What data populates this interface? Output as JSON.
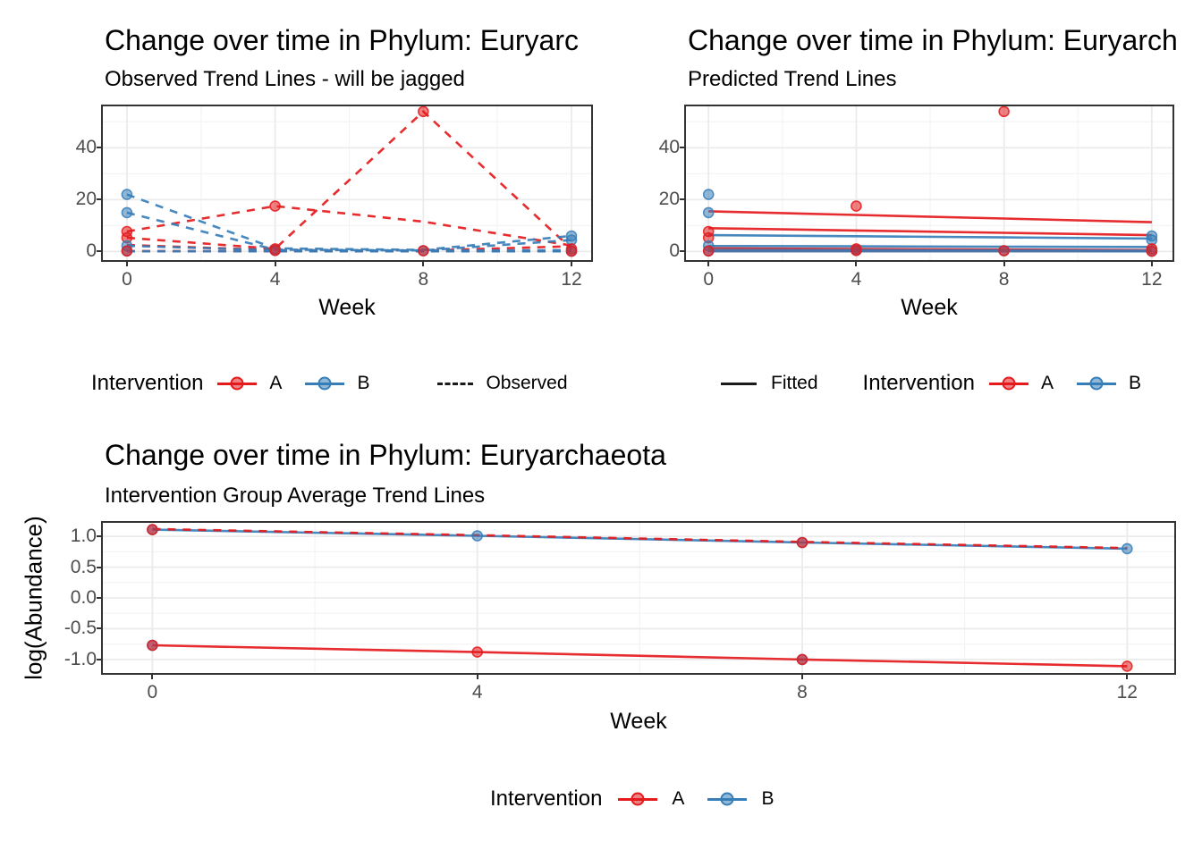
{
  "palette": {
    "red": "#E41A1C",
    "blue": "#377EB8",
    "tick_text": "#4D4D4D",
    "grid_major": "#EBEBEB",
    "grid_minor": "#F4F4F4",
    "panel_border": "#333333"
  },
  "legends": {
    "row1_left": {
      "title": "Intervention",
      "items": [
        {
          "label": "A",
          "color": "red"
        },
        {
          "label": "B",
          "color": "blue"
        }
      ],
      "linetype_label": "Observed",
      "linetype_style": "dashed"
    },
    "row1_right": {
      "linetype_label": "Fitted",
      "linetype_style": "solid",
      "title": "Intervention",
      "items": [
        {
          "label": "A",
          "color": "red"
        },
        {
          "label": "B",
          "color": "blue"
        }
      ]
    },
    "row2": {
      "title": "Intervention",
      "items": [
        {
          "label": "A",
          "color": "red"
        },
        {
          "label": "B",
          "color": "blue"
        }
      ]
    }
  },
  "chart_data": [
    {
      "type": "line",
      "title": "Change over time in Phylum: Euryarc",
      "subtitle": "Observed Trend Lines - will be jagged",
      "xlabel": "Week",
      "ylabel": "",
      "line_style": "dashed (Observed)",
      "xlim": [
        -0.65,
        12.53
      ],
      "ylim": [
        -3.33,
        56
      ],
      "x_ticks": [
        0,
        4,
        8,
        12
      ],
      "x_tick_labels": [
        "0",
        "4",
        "8",
        "12"
      ],
      "x_minor": [
        2,
        6,
        10
      ],
      "y_ticks": [
        0,
        20,
        40
      ],
      "y_tick_labels": [
        "0",
        "20",
        "40"
      ],
      "y_minor": [
        10,
        30,
        50
      ],
      "x": [
        0,
        4,
        8,
        12
      ],
      "series": [
        {
          "intervention": "A",
          "color": "red",
          "dash": true,
          "values": [
            7.7,
            17.5,
            11.5,
            2.3
          ]
        },
        {
          "intervention": "A",
          "color": "red",
          "dash": true,
          "values": [
            5.3,
            1.0,
            54,
            1.0
          ]
        },
        {
          "intervention": "A",
          "color": "red",
          "dash": true,
          "values": [
            2.5,
            0.5,
            0.3,
            2.0
          ]
        },
        {
          "intervention": "A",
          "color": "red",
          "dash": true,
          "values": [
            0.15,
            0.1,
            0.1,
            0.1
          ]
        },
        {
          "intervention": "B",
          "color": "blue",
          "dash": true,
          "values": [
            22,
            1.2,
            0.6,
            6.0
          ]
        },
        {
          "intervention": "B",
          "color": "blue",
          "dash": true,
          "values": [
            15,
            0.7,
            0.4,
            4.4
          ]
        },
        {
          "intervention": "B",
          "color": "blue",
          "dash": true,
          "values": [
            2.2,
            0.5,
            0.3,
            0.5
          ]
        },
        {
          "intervention": "B",
          "color": "blue",
          "dash": true,
          "values": [
            0.05,
            0.05,
            0.05,
            0.05
          ]
        }
      ],
      "points": [
        {
          "x": 0,
          "y": 22,
          "c": [
            "blue"
          ]
        },
        {
          "x": 0,
          "y": 15,
          "c": [
            "blue"
          ]
        },
        {
          "x": 0,
          "y": 7.7,
          "c": [
            "red"
          ]
        },
        {
          "x": 0,
          "y": 5.3,
          "c": [
            "red"
          ]
        },
        {
          "x": 0,
          "y": 2.2,
          "c": [
            "blue"
          ]
        },
        {
          "x": 0,
          "y": 0.2,
          "c": [
            "blue",
            "red"
          ]
        },
        {
          "x": 4,
          "y": 17.5,
          "c": [
            "red"
          ]
        },
        {
          "x": 4,
          "y": 1.0,
          "c": [
            "red"
          ]
        },
        {
          "x": 4,
          "y": 0.4,
          "c": [
            "blue",
            "red"
          ]
        },
        {
          "x": 8,
          "y": 54,
          "c": [
            "red"
          ]
        },
        {
          "x": 8,
          "y": 0.3,
          "c": [
            "blue",
            "red"
          ]
        },
        {
          "x": 12,
          "y": 6,
          "c": [
            "blue"
          ]
        },
        {
          "x": 12,
          "y": 4.4,
          "c": [
            "blue"
          ]
        },
        {
          "x": 12,
          "y": 1.0,
          "c": [
            "red"
          ]
        },
        {
          "x": 12,
          "y": 0.1,
          "c": [
            "blue",
            "red"
          ]
        }
      ]
    },
    {
      "type": "line",
      "title": "Change over time in Phylum: Euryarch",
      "subtitle": "Predicted Trend Lines",
      "xlabel": "Week",
      "ylabel": "",
      "line_style": "solid (Fitted)",
      "xlim": [
        -0.61,
        12.56
      ],
      "ylim": [
        -3.33,
        56
      ],
      "x_ticks": [
        0,
        4,
        8,
        12
      ],
      "x_tick_labels": [
        "0",
        "4",
        "8",
        "12"
      ],
      "x_minor": [
        2,
        6,
        10
      ],
      "y_ticks": [
        0,
        20,
        40
      ],
      "y_tick_labels": [
        "0",
        "20",
        "40"
      ],
      "y_minor": [
        10,
        30,
        50
      ],
      "x": [
        0,
        4,
        8,
        12
      ],
      "series": [
        {
          "intervention": "A",
          "color": "red",
          "dash": false,
          "values": [
            15.5,
            14.1,
            12.7,
            11.3
          ]
        },
        {
          "intervention": "A",
          "color": "red",
          "dash": false,
          "values": [
            9.0,
            8.1,
            7.2,
            6.3
          ]
        },
        {
          "intervention": "B",
          "color": "blue",
          "dash": false,
          "values": [
            6.3,
            5.87,
            5.43,
            5.0
          ]
        },
        {
          "intervention": "B",
          "color": "blue",
          "dash": false,
          "values": [
            2.1,
            1.97,
            1.83,
            1.7
          ]
        },
        {
          "intervention": "A",
          "color": "red",
          "dash": false,
          "values": [
            1.2,
            0.97,
            0.73,
            0.5
          ]
        },
        {
          "intervention": "B",
          "color": "blue",
          "dash": false,
          "values": [
            0.6,
            0.52,
            0.43,
            0.35
          ]
        },
        {
          "intervention": "A",
          "color": "red",
          "dash": false,
          "values": [
            0.15,
            0.13,
            0.12,
            0.1
          ]
        },
        {
          "intervention": "B",
          "color": "blue",
          "dash": false,
          "values": [
            0.1,
            0.08,
            0.07,
            0.05
          ]
        }
      ],
      "points": [
        {
          "x": 0,
          "y": 22,
          "c": [
            "blue"
          ]
        },
        {
          "x": 0,
          "y": 15,
          "c": [
            "blue"
          ]
        },
        {
          "x": 0,
          "y": 7.7,
          "c": [
            "red"
          ]
        },
        {
          "x": 0,
          "y": 5.3,
          "c": [
            "red"
          ]
        },
        {
          "x": 0,
          "y": 2.2,
          "c": [
            "blue"
          ]
        },
        {
          "x": 0,
          "y": 0.2,
          "c": [
            "blue",
            "red"
          ]
        },
        {
          "x": 4,
          "y": 17.5,
          "c": [
            "red"
          ]
        },
        {
          "x": 4,
          "y": 1.0,
          "c": [
            "red"
          ]
        },
        {
          "x": 4,
          "y": 0.4,
          "c": [
            "blue",
            "red"
          ]
        },
        {
          "x": 8,
          "y": 54,
          "c": [
            "red"
          ]
        },
        {
          "x": 8,
          "y": 0.3,
          "c": [
            "blue",
            "red"
          ]
        },
        {
          "x": 12,
          "y": 6,
          "c": [
            "blue"
          ]
        },
        {
          "x": 12,
          "y": 4.4,
          "c": [
            "blue"
          ]
        },
        {
          "x": 12,
          "y": 1.0,
          "c": [
            "red"
          ]
        },
        {
          "x": 12,
          "y": 0.1,
          "c": [
            "blue",
            "red"
          ]
        }
      ]
    },
    {
      "type": "line",
      "title": "Change over time in Phylum: Euryarchaeota",
      "subtitle": "Intervention Group Average Trend Lines",
      "xlabel": "Week",
      "ylabel": "log(Abundance)",
      "xlim": [
        -0.61,
        12.58
      ],
      "ylim": [
        -1.22,
        1.22
      ],
      "x_ticks": [
        0,
        4,
        8,
        12
      ],
      "x_tick_labels": [
        "0",
        "4",
        "8",
        "12"
      ],
      "x_minor": [
        2,
        6,
        10
      ],
      "y_ticks": [
        1.0,
        0.5,
        0.0,
        -0.5,
        -1.0
      ],
      "y_tick_labels": [
        "1.0",
        "0.5",
        "0.0",
        "-0.5",
        "-1.0"
      ],
      "y_minor": [
        0.75,
        0.25,
        -0.25,
        -0.75
      ],
      "x": [
        0,
        4,
        8,
        12
      ],
      "series": [
        {
          "intervention": "B",
          "color": "blue",
          "dash": false,
          "values": [
            1.11,
            1.01,
            0.9,
            0.8
          ]
        },
        {
          "intervention": "A",
          "color": "red",
          "dash": true,
          "values": [
            1.12,
            1.02,
            0.91,
            0.81
          ]
        },
        {
          "intervention": "A",
          "color": "red",
          "dash": false,
          "values": [
            -0.77,
            -0.88,
            -1.0,
            -1.11
          ]
        }
      ],
      "points": [
        {
          "x": 0,
          "y": 1.11,
          "c": [
            "blue",
            "red"
          ]
        },
        {
          "x": 4,
          "y": 1.01,
          "c": [
            "blue"
          ]
        },
        {
          "x": 8,
          "y": 0.9,
          "c": [
            "blue",
            "red"
          ]
        },
        {
          "x": 12,
          "y": 0.8,
          "c": [
            "blue"
          ]
        },
        {
          "x": 0,
          "y": -0.77,
          "c": [
            "blue",
            "red"
          ]
        },
        {
          "x": 4,
          "y": -0.88,
          "c": [
            "red"
          ]
        },
        {
          "x": 8,
          "y": -1.0,
          "c": [
            "blue",
            "red"
          ]
        },
        {
          "x": 12,
          "y": -1.11,
          "c": [
            "red"
          ]
        }
      ]
    }
  ]
}
